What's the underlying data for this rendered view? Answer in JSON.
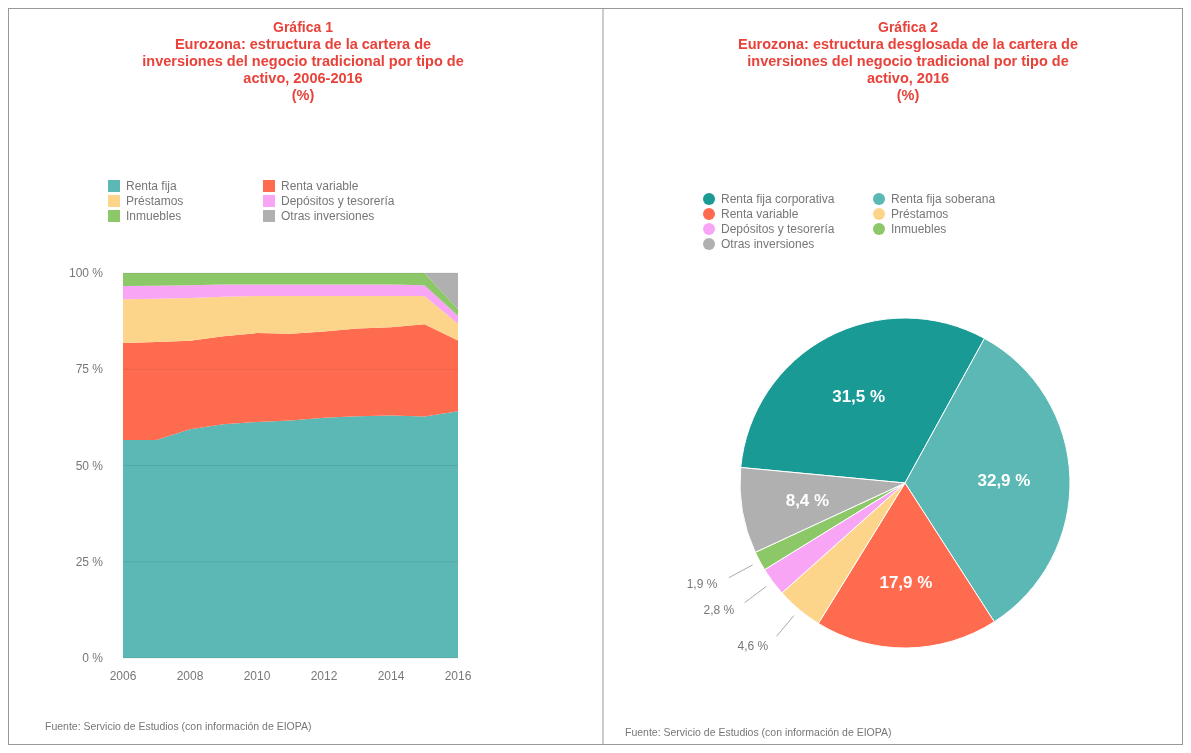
{
  "chart_data": [
    {
      "type": "area",
      "stacked": true,
      "title": "Gráfica 1",
      "subtitle": "Eurozona: estructura de la cartera de inversiones del negocio tradicional por tipo de activo, 2006-2016\n(%)",
      "x": [
        2006,
        2007,
        2008,
        2009,
        2010,
        2011,
        2012,
        2013,
        2014,
        2015,
        2016
      ],
      "xlim": [
        2006,
        2016
      ],
      "xticks": [
        2006,
        2008,
        2010,
        2012,
        2014,
        2016
      ],
      "ylim": [
        0,
        100
      ],
      "yticks": [
        {
          "value": 0,
          "label": "0 %"
        },
        {
          "value": 25,
          "label": "25 %"
        },
        {
          "value": 50,
          "label": "50 %"
        },
        {
          "value": 75,
          "label": "75 %"
        },
        {
          "value": 100,
          "label": "100 %"
        }
      ],
      "grid": "y",
      "legend": "top",
      "series": [
        {
          "name": "Renta fija",
          "color": "#5bb8b4",
          "values": [
            56.6,
            56.6,
            59.4,
            60.7,
            61.3,
            61.7,
            62.4,
            62.8,
            63,
            62.7,
            64.1
          ]
        },
        {
          "name": "Renta variable",
          "color": "#ff6b4f",
          "values": [
            25.2,
            25.5,
            23,
            22.9,
            23.1,
            22.5,
            22.4,
            22.8,
            22.9,
            24,
            18.4
          ]
        },
        {
          "name": "Préstamos",
          "color": "#fdd58a",
          "values": [
            11.4,
            11.2,
            11.1,
            10.2,
            9.6,
            9.8,
            9.2,
            8.4,
            8.1,
            7.3,
            4.3
          ]
        },
        {
          "name": "Depósitos y tesorería",
          "color": "#f8a5f5",
          "values": [
            3.4,
            3.4,
            3.3,
            3.2,
            3,
            3,
            3,
            3,
            3,
            2.8,
            2.1
          ]
        },
        {
          "name": "Inmuebles",
          "color": "#8cc868",
          "values": [
            3.4,
            3.3,
            3.2,
            3,
            3,
            3,
            3,
            3,
            3,
            3.2,
            1.7
          ]
        },
        {
          "name": "Otras inversiones",
          "color": "#b0b0b0",
          "values": [
            0,
            0,
            0,
            0,
            0,
            0,
            0,
            0,
            0,
            0,
            9.4
          ]
        }
      ],
      "annotations": [
        "Fuente: Servicio de Estudios (con información de EIOPA)"
      ]
    },
    {
      "type": "pie",
      "title": "Gráfica 2",
      "subtitle": "Eurozona: estructura desglosada de la cartera de inversiones del negocio tradicional por tipo de activo, 2016\n(%)",
      "categories": [
        "Renta fija corporativa",
        "Renta fija soberana",
        "Renta variable",
        "Préstamos",
        "Depósitos y tesorería",
        "Inmuebles",
        "Otras inversiones"
      ],
      "values": [
        31.5,
        32.9,
        17.9,
        4.6,
        2.8,
        1.9,
        8.4
      ],
      "colors": [
        "#1a9a94",
        "#5bb8b4",
        "#ff6b4f",
        "#fdd58a",
        "#f8a5f5",
        "#8cc868",
        "#b0b0b0"
      ],
      "value_labels": [
        "31,5 %",
        "32,9 %",
        "17,9 %",
        "4,6 %",
        "2,8 %",
        "1,9 %",
        "8,4 %"
      ],
      "legend": "top",
      "annotations": [
        "Fuente: Servicio de Estudios (con información de EIOPA)"
      ]
    }
  ]
}
